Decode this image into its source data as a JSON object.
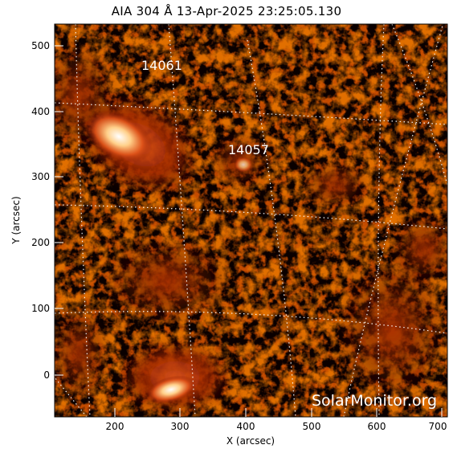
{
  "title": "AIA 304 Å 13-Apr-2025 23:25:05.130",
  "axes": {
    "xlabel": "X (arcsec)",
    "ylabel": "Y (arcsec)",
    "xticks": [
      "200",
      "300",
      "400",
      "500",
      "600",
      "700"
    ],
    "yticks": [
      "0",
      "100",
      "200",
      "300",
      "400",
      "500"
    ]
  },
  "regions": [
    "14061",
    "14057"
  ],
  "watermark": "SolarMonitor.org",
  "colors": {
    "background": "#000000",
    "mid": "#a82a00",
    "bright": "#ffe8c0"
  }
}
